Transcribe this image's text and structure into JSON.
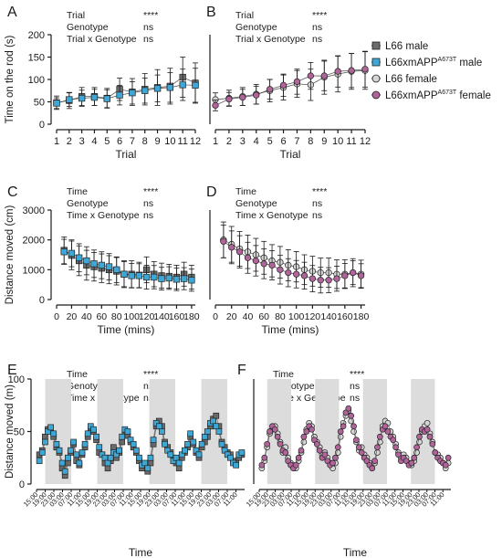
{
  "chart_data": [
    {
      "panel": "A",
      "type": "scatter",
      "stats": [
        {
          "term": "Trial",
          "p": "****"
        },
        {
          "term": "Genotype",
          "p": "ns"
        },
        {
          "term": "Trial x Genotype",
          "p": "ns"
        }
      ],
      "xlabel": "Trial",
      "ylabel": "Time on the rod (s)",
      "x": [
        1,
        2,
        3,
        4,
        5,
        6,
        7,
        8,
        9,
        10,
        11,
        12
      ],
      "xticks": [
        "1",
        "2",
        "3",
        "4",
        "5",
        "6",
        "7",
        "8",
        "9",
        "10",
        "11",
        "12"
      ],
      "ylim": [
        0,
        200
      ],
      "yticks": [
        0,
        50,
        100,
        150,
        200
      ],
      "series": [
        {
          "name": "L66 male",
          "values": [
            48,
            53,
            62,
            62,
            58,
            78,
            72,
            78,
            82,
            85,
            105,
            92
          ],
          "err": [
            15,
            18,
            20,
            20,
            22,
            25,
            30,
            35,
            40,
            40,
            45,
            45
          ]
        },
        {
          "name": "L66xmAPP A673T male",
          "values": [
            47,
            55,
            58,
            60,
            57,
            65,
            70,
            75,
            80,
            82,
            88,
            87
          ],
          "err": [
            12,
            15,
            18,
            18,
            20,
            22,
            25,
            28,
            30,
            33,
            35,
            38
          ]
        }
      ]
    },
    {
      "panel": "B",
      "type": "scatter",
      "stats": [
        {
          "term": "Trial",
          "p": "****"
        },
        {
          "term": "Genotype",
          "p": "ns"
        },
        {
          "term": "Trial x Genotype",
          "p": "ns"
        }
      ],
      "xlabel": "Trial",
      "ylabel": "",
      "x": [
        1,
        2,
        3,
        4,
        5,
        6,
        7,
        8,
        9,
        10,
        11,
        12
      ],
      "xticks": [
        "1",
        "2",
        "3",
        "4",
        "5",
        "6",
        "7",
        "8",
        "9",
        "10",
        "11",
        "12"
      ],
      "ylim": [
        0,
        200
      ],
      "series": [
        {
          "name": "L66 female",
          "values": [
            55,
            58,
            62,
            67,
            75,
            82,
            90,
            88,
            105,
            112,
            118,
            120
          ],
          "err": [
            15,
            18,
            20,
            22,
            25,
            28,
            30,
            35,
            38,
            40,
            40,
            42
          ]
        },
        {
          "name": "L66xmAPP A673T female",
          "values": [
            42,
            56,
            60,
            65,
            78,
            87,
            95,
            108,
            108,
            118,
            120,
            123
          ],
          "err": [
            12,
            15,
            18,
            20,
            22,
            25,
            28,
            30,
            33,
            35,
            38,
            40
          ]
        }
      ]
    },
    {
      "panel": "C",
      "type": "scatter",
      "stats": [
        {
          "term": "Time",
          "p": "****"
        },
        {
          "term": "Genotype",
          "p": "ns"
        },
        {
          "term": "Time x Genotype",
          "p": "ns"
        }
      ],
      "xlabel": "Time (mins)",
      "ylabel": "Distance moved (cm)",
      "x": [
        10,
        20,
        30,
        40,
        50,
        60,
        70,
        80,
        90,
        100,
        110,
        120,
        130,
        140,
        150,
        160,
        170,
        180
      ],
      "xticks": [
        "0",
        "20",
        "40",
        "60",
        "80",
        "100",
        "120",
        "140",
        "160",
        "180"
      ],
      "ylim": [
        0,
        3000
      ],
      "yticks": [
        0,
        1000,
        2000,
        3000
      ],
      "series": [
        {
          "name": "L66 male",
          "values": [
            1650,
            1480,
            1300,
            1150,
            1100,
            1050,
            1000,
            950,
            850,
            850,
            820,
            1000,
            850,
            800,
            780,
            750,
            850,
            750
          ],
          "err": [
            450,
            480,
            500,
            500,
            480,
            480,
            470,
            460,
            450,
            450,
            430,
            430,
            420,
            420,
            400,
            400,
            400,
            400
          ]
        },
        {
          "name": "L66xmAPP A673T male",
          "values": [
            1600,
            1550,
            1400,
            1300,
            1200,
            1150,
            1100,
            1000,
            850,
            800,
            800,
            750,
            750,
            700,
            720,
            680,
            700,
            650
          ],
          "err": [
            420,
            450,
            470,
            470,
            460,
            450,
            440,
            430,
            420,
            410,
            400,
            400,
            390,
            380,
            380,
            380,
            370,
            370
          ]
        }
      ]
    },
    {
      "panel": "D",
      "type": "scatter",
      "stats": [
        {
          "term": "Time",
          "p": "****"
        },
        {
          "term": "Genotype",
          "p": "ns"
        },
        {
          "term": "Time x Genotype",
          "p": "ns"
        }
      ],
      "xlabel": "Time (mins)",
      "ylabel": "",
      "x": [
        10,
        20,
        30,
        40,
        50,
        60,
        70,
        80,
        90,
        100,
        110,
        120,
        130,
        140,
        150,
        160,
        170,
        180
      ],
      "xticks": [
        "0",
        "20",
        "40",
        "60",
        "80",
        "100",
        "120",
        "140",
        "160",
        "180"
      ],
      "ylim": [
        0,
        3000
      ],
      "series": [
        {
          "name": "L66 female",
          "values": [
            2000,
            1850,
            1700,
            1600,
            1500,
            1400,
            1300,
            1250,
            1150,
            1100,
            1000,
            950,
            900,
            900,
            850,
            850,
            900,
            850
          ],
          "err": [
            600,
            600,
            580,
            560,
            550,
            550,
            540,
            530,
            520,
            510,
            500,
            500,
            490,
            490,
            480,
            480,
            470,
            470
          ]
        },
        {
          "name": "L66xmAPP A673T female",
          "values": [
            1950,
            1750,
            1600,
            1400,
            1300,
            1200,
            1150,
            1000,
            900,
            850,
            800,
            700,
            650,
            650,
            700,
            800,
            900,
            800
          ],
          "err": [
            550,
            550,
            540,
            520,
            510,
            500,
            490,
            480,
            470,
            460,
            450,
            440,
            430,
            420,
            420,
            410,
            400,
            400
          ]
        }
      ]
    },
    {
      "panel": "E",
      "type": "line",
      "stats": [
        {
          "term": "Time",
          "p": "****"
        },
        {
          "term": "Genotype",
          "p": "ns"
        },
        {
          "term": "Time x Genotype",
          "p": "ns"
        }
      ],
      "xlabel": "Time",
      "ylabel": "Distance moved (m)",
      "xticks": [
        "15:00",
        "19:00",
        "23:00",
        "03:00",
        "07:00",
        "11:00",
        "15:00",
        "19:00",
        "23:00",
        "03:00",
        "07:00",
        "11:00",
        "15:00",
        "19:00",
        "23:00",
        "03:00",
        "07:00",
        "11:00",
        "15:00",
        "19:00",
        "23:00",
        "03:00",
        "07:00",
        "11:00"
      ],
      "ylim": [
        0,
        100
      ],
      "yticks": [
        0,
        50,
        100
      ],
      "dark_phases": [
        [
          4,
          16
        ],
        [
          28,
          40
        ],
        [
          52,
          64
        ],
        [
          76,
          88
        ]
      ],
      "series": [
        {
          "name": "L66 male",
          "values": [
            28,
            32,
            45,
            52,
            53,
            45,
            35,
            30,
            15,
            8,
            20,
            30,
            38,
            22,
            18,
            28,
            35,
            45,
            52,
            50,
            42,
            30,
            28,
            20,
            15,
            22,
            35,
            25,
            30,
            40,
            48,
            46,
            40,
            35,
            30,
            22,
            15,
            18,
            12,
            20,
            38,
            55,
            60,
            55,
            40,
            35,
            30,
            25,
            20,
            15,
            25,
            30,
            35,
            45,
            38,
            30,
            25,
            35,
            40,
            45,
            55,
            62,
            65,
            55,
            40,
            35,
            30,
            28,
            22,
            20,
            25,
            28
          ]
        },
        {
          "name": "L66xmAPP A673T male",
          "values": [
            22,
            30,
            40,
            50,
            54,
            48,
            38,
            32,
            20,
            12,
            25,
            32,
            40,
            28,
            20,
            30,
            38,
            48,
            55,
            52,
            45,
            35,
            28,
            25,
            20,
            25,
            30,
            28,
            32,
            45,
            52,
            50,
            42,
            38,
            32,
            25,
            18,
            20,
            15,
            25,
            42,
            58,
            55,
            50,
            38,
            32,
            28,
            22,
            25,
            20,
            28,
            32,
            38,
            48,
            40,
            32,
            28,
            38,
            45,
            50,
            58,
            60,
            55,
            50,
            38,
            32,
            28,
            25,
            20,
            18,
            28,
            30
          ]
        }
      ]
    },
    {
      "panel": "F",
      "type": "line",
      "stats": [
        {
          "term": "Time",
          "p": "****"
        },
        {
          "term": "Genotype",
          "p": "ns"
        },
        {
          "term": "Time x Genotype",
          "p": "ns"
        }
      ],
      "xlabel": "Time",
      "ylabel": "",
      "xticks": [
        "15:00",
        "19:00",
        "23:00",
        "03:00",
        "07:00",
        "11:00",
        "15:00",
        "19:00",
        "23:00",
        "03:00",
        "07:00",
        "11:00",
        "15:00",
        "19:00",
        "23:00",
        "03:00",
        "07:00",
        "11:00",
        "15:00",
        "19:00",
        "23:00",
        "03:00",
        "07:00",
        "11:00"
      ],
      "ylim": [
        0,
        100
      ],
      "dark_phases": [
        [
          4,
          16
        ],
        [
          28,
          40
        ],
        [
          52,
          64
        ],
        [
          76,
          88
        ]
      ],
      "series": [
        {
          "name": "L66 female",
          "values": [
            15,
            22,
            35,
            48,
            52,
            55,
            48,
            40,
            30,
            35,
            25,
            20,
            18,
            15,
            22,
            30,
            40,
            52,
            58,
            55,
            45,
            40,
            35,
            28,
            30,
            25,
            20,
            15,
            20,
            30,
            45,
            58,
            65,
            70,
            60,
            50,
            40,
            32,
            35,
            28,
            25,
            20,
            15,
            20,
            30,
            40,
            55,
            60,
            58,
            50,
            45,
            38,
            30,
            25,
            28,
            25,
            20,
            18,
            22,
            30,
            40,
            50,
            55,
            58,
            48,
            40,
            30,
            28,
            25,
            20,
            15,
            20
          ]
        },
        {
          "name": "L66xmAPP A673T female",
          "values": [
            18,
            25,
            38,
            50,
            55,
            52,
            45,
            38,
            32,
            30,
            22,
            18,
            15,
            18,
            25,
            32,
            45,
            50,
            55,
            52,
            42,
            38,
            32,
            25,
            28,
            22,
            18,
            20,
            25,
            35,
            50,
            55,
            68,
            72,
            65,
            55,
            42,
            35,
            30,
            25,
            22,
            18,
            15,
            22,
            35,
            45,
            52,
            55,
            50,
            45,
            42,
            35,
            28,
            22,
            25,
            22,
            18,
            20,
            25,
            35,
            45,
            52,
            50,
            52,
            45,
            38,
            30,
            25,
            22,
            20,
            18,
            25
          ]
        }
      ]
    }
  ],
  "legend": [
    {
      "name": "L66 male",
      "label": "L66 male",
      "sup": "",
      "marker": "square",
      "color": "#6b6b6b"
    },
    {
      "name": "L66xmAPP A673T male",
      "label": "L66xmAPP",
      "sup": "A673T",
      "suffix": " male",
      "marker": "square",
      "color": "#3fa7d6"
    },
    {
      "name": "L66 female",
      "label": "L66 female",
      "sup": "",
      "marker": "circle",
      "color": "#d6d6d6"
    },
    {
      "name": "L66xmAPP A673T female",
      "label": "L66xmAPP",
      "sup": "A673T",
      "suffix": " female",
      "marker": "circle",
      "color": "#b0649a"
    }
  ]
}
